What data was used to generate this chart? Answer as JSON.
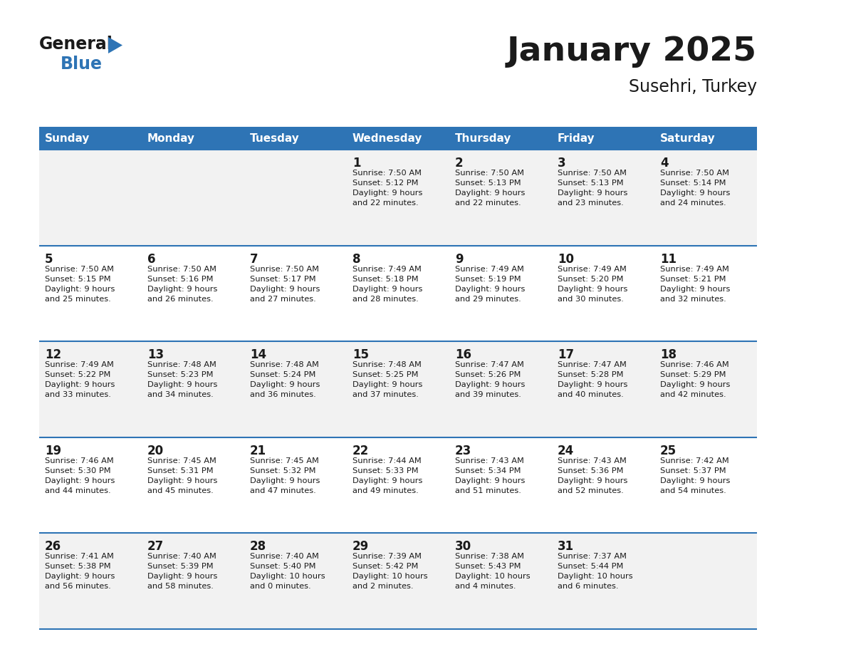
{
  "title": "January 2025",
  "subtitle": "Susehri, Turkey",
  "header_color": "#2E74B5",
  "header_text_color": "#FFFFFF",
  "cell_bg_even": "#F2F2F2",
  "cell_bg_odd": "#FFFFFF",
  "border_color": "#2E74B5",
  "text_color": "#1a1a1a",
  "days_of_week": [
    "Sunday",
    "Monday",
    "Tuesday",
    "Wednesday",
    "Thursday",
    "Friday",
    "Saturday"
  ],
  "calendar_data": [
    [
      {
        "day": "",
        "info": ""
      },
      {
        "day": "",
        "info": ""
      },
      {
        "day": "",
        "info": ""
      },
      {
        "day": "1",
        "info": "Sunrise: 7:50 AM\nSunset: 5:12 PM\nDaylight: 9 hours\nand 22 minutes."
      },
      {
        "day": "2",
        "info": "Sunrise: 7:50 AM\nSunset: 5:13 PM\nDaylight: 9 hours\nand 22 minutes."
      },
      {
        "day": "3",
        "info": "Sunrise: 7:50 AM\nSunset: 5:13 PM\nDaylight: 9 hours\nand 23 minutes."
      },
      {
        "day": "4",
        "info": "Sunrise: 7:50 AM\nSunset: 5:14 PM\nDaylight: 9 hours\nand 24 minutes."
      }
    ],
    [
      {
        "day": "5",
        "info": "Sunrise: 7:50 AM\nSunset: 5:15 PM\nDaylight: 9 hours\nand 25 minutes."
      },
      {
        "day": "6",
        "info": "Sunrise: 7:50 AM\nSunset: 5:16 PM\nDaylight: 9 hours\nand 26 minutes."
      },
      {
        "day": "7",
        "info": "Sunrise: 7:50 AM\nSunset: 5:17 PM\nDaylight: 9 hours\nand 27 minutes."
      },
      {
        "day": "8",
        "info": "Sunrise: 7:49 AM\nSunset: 5:18 PM\nDaylight: 9 hours\nand 28 minutes."
      },
      {
        "day": "9",
        "info": "Sunrise: 7:49 AM\nSunset: 5:19 PM\nDaylight: 9 hours\nand 29 minutes."
      },
      {
        "day": "10",
        "info": "Sunrise: 7:49 AM\nSunset: 5:20 PM\nDaylight: 9 hours\nand 30 minutes."
      },
      {
        "day": "11",
        "info": "Sunrise: 7:49 AM\nSunset: 5:21 PM\nDaylight: 9 hours\nand 32 minutes."
      }
    ],
    [
      {
        "day": "12",
        "info": "Sunrise: 7:49 AM\nSunset: 5:22 PM\nDaylight: 9 hours\nand 33 minutes."
      },
      {
        "day": "13",
        "info": "Sunrise: 7:48 AM\nSunset: 5:23 PM\nDaylight: 9 hours\nand 34 minutes."
      },
      {
        "day": "14",
        "info": "Sunrise: 7:48 AM\nSunset: 5:24 PM\nDaylight: 9 hours\nand 36 minutes."
      },
      {
        "day": "15",
        "info": "Sunrise: 7:48 AM\nSunset: 5:25 PM\nDaylight: 9 hours\nand 37 minutes."
      },
      {
        "day": "16",
        "info": "Sunrise: 7:47 AM\nSunset: 5:26 PM\nDaylight: 9 hours\nand 39 minutes."
      },
      {
        "day": "17",
        "info": "Sunrise: 7:47 AM\nSunset: 5:28 PM\nDaylight: 9 hours\nand 40 minutes."
      },
      {
        "day": "18",
        "info": "Sunrise: 7:46 AM\nSunset: 5:29 PM\nDaylight: 9 hours\nand 42 minutes."
      }
    ],
    [
      {
        "day": "19",
        "info": "Sunrise: 7:46 AM\nSunset: 5:30 PM\nDaylight: 9 hours\nand 44 minutes."
      },
      {
        "day": "20",
        "info": "Sunrise: 7:45 AM\nSunset: 5:31 PM\nDaylight: 9 hours\nand 45 minutes."
      },
      {
        "day": "21",
        "info": "Sunrise: 7:45 AM\nSunset: 5:32 PM\nDaylight: 9 hours\nand 47 minutes."
      },
      {
        "day": "22",
        "info": "Sunrise: 7:44 AM\nSunset: 5:33 PM\nDaylight: 9 hours\nand 49 minutes."
      },
      {
        "day": "23",
        "info": "Sunrise: 7:43 AM\nSunset: 5:34 PM\nDaylight: 9 hours\nand 51 minutes."
      },
      {
        "day": "24",
        "info": "Sunrise: 7:43 AM\nSunset: 5:36 PM\nDaylight: 9 hours\nand 52 minutes."
      },
      {
        "day": "25",
        "info": "Sunrise: 7:42 AM\nSunset: 5:37 PM\nDaylight: 9 hours\nand 54 minutes."
      }
    ],
    [
      {
        "day": "26",
        "info": "Sunrise: 7:41 AM\nSunset: 5:38 PM\nDaylight: 9 hours\nand 56 minutes."
      },
      {
        "day": "27",
        "info": "Sunrise: 7:40 AM\nSunset: 5:39 PM\nDaylight: 9 hours\nand 58 minutes."
      },
      {
        "day": "28",
        "info": "Sunrise: 7:40 AM\nSunset: 5:40 PM\nDaylight: 10 hours\nand 0 minutes."
      },
      {
        "day": "29",
        "info": "Sunrise: 7:39 AM\nSunset: 5:42 PM\nDaylight: 10 hours\nand 2 minutes."
      },
      {
        "day": "30",
        "info": "Sunrise: 7:38 AM\nSunset: 5:43 PM\nDaylight: 10 hours\nand 4 minutes."
      },
      {
        "day": "31",
        "info": "Sunrise: 7:37 AM\nSunset: 5:44 PM\nDaylight: 10 hours\nand 6 minutes."
      },
      {
        "day": "",
        "info": ""
      }
    ]
  ],
  "logo_general_color": "#1a1a1a",
  "logo_blue_color": "#2E74B5",
  "logo_triangle_color": "#2E74B5"
}
